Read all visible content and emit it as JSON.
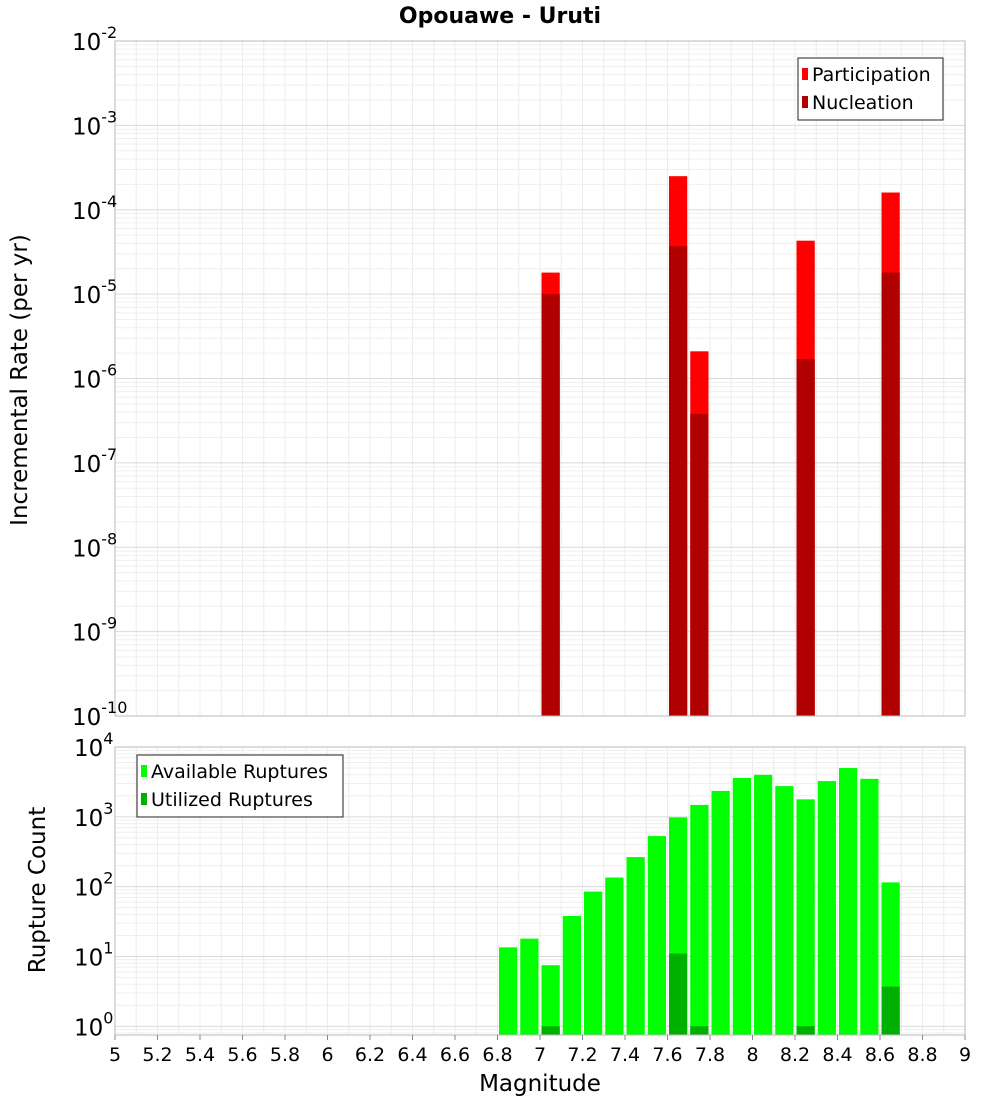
{
  "chart_data": [
    {
      "type": "bar",
      "title": "Opouawe - Uruti",
      "ylabel": "Incremental Rate (per yr)",
      "y_scale": "log",
      "ylim": [
        1e-10,
        0.01
      ],
      "xlim": [
        5,
        9
      ],
      "legend_position": "top-right",
      "grid": true,
      "y_ticks": [
        {
          "base": "10",
          "exp": "-10"
        },
        {
          "base": "10",
          "exp": "-9"
        },
        {
          "base": "10",
          "exp": "-8"
        },
        {
          "base": "10",
          "exp": "-7"
        },
        {
          "base": "10",
          "exp": "-6"
        },
        {
          "base": "10",
          "exp": "-5"
        },
        {
          "base": "10",
          "exp": "-4"
        },
        {
          "base": "10",
          "exp": "-3"
        },
        {
          "base": "10",
          "exp": "-2"
        }
      ],
      "series": [
        {
          "name": "Participation",
          "color": "#ff0000",
          "points": [
            {
              "x": 7.05,
              "y": 1.8e-05
            },
            {
              "x": 7.65,
              "y": 0.00025
            },
            {
              "x": 7.75,
              "y": 2.1e-06
            },
            {
              "x": 8.25,
              "y": 4.3e-05
            },
            {
              "x": 8.65,
              "y": 0.00016
            }
          ]
        },
        {
          "name": "Nucleation",
          "color": "#b00000",
          "points": [
            {
              "x": 7.05,
              "y": 1e-05
            },
            {
              "x": 7.65,
              "y": 3.7e-05
            },
            {
              "x": 7.75,
              "y": 3.8e-07
            },
            {
              "x": 8.25,
              "y": 1.7e-06
            },
            {
              "x": 8.65,
              "y": 1.8e-05
            }
          ]
        }
      ]
    },
    {
      "type": "bar",
      "xlabel": "Magnitude",
      "ylabel": "Rupture Count",
      "y_scale": "log",
      "ylim": [
        0.75,
        10000
      ],
      "xlim": [
        5,
        9
      ],
      "legend_position": "top-left",
      "grid": true,
      "x_ticks": [
        "5",
        "5.2",
        "5.4",
        "5.6",
        "5.8",
        "6",
        "6.2",
        "6.4",
        "6.6",
        "6.8",
        "7",
        "7.2",
        "7.4",
        "7.6",
        "7.8",
        "8",
        "8.2",
        "8.4",
        "8.6",
        "8.8",
        "9"
      ],
      "y_ticks": [
        {
          "base": "10",
          "exp": "0"
        },
        {
          "base": "10",
          "exp": "1"
        },
        {
          "base": "10",
          "exp": "2"
        },
        {
          "base": "10",
          "exp": "3"
        },
        {
          "base": "10",
          "exp": "4"
        }
      ],
      "series": [
        {
          "name": "Available Ruptures",
          "color": "#00ff00",
          "points": [
            {
              "x": 6.85,
              "y": 13.5
            },
            {
              "x": 6.95,
              "y": 18
            },
            {
              "x": 7.05,
              "y": 7.5
            },
            {
              "x": 7.15,
              "y": 38
            },
            {
              "x": 7.25,
              "y": 85
            },
            {
              "x": 7.35,
              "y": 135
            },
            {
              "x": 7.45,
              "y": 265
            },
            {
              "x": 7.55,
              "y": 530
            },
            {
              "x": 7.65,
              "y": 980
            },
            {
              "x": 7.75,
              "y": 1480
            },
            {
              "x": 7.85,
              "y": 2350
            },
            {
              "x": 7.95,
              "y": 3600
            },
            {
              "x": 8.05,
              "y": 4000
            },
            {
              "x": 8.15,
              "y": 2750
            },
            {
              "x": 8.25,
              "y": 1780
            },
            {
              "x": 8.35,
              "y": 3250
            },
            {
              "x": 8.45,
              "y": 5000
            },
            {
              "x": 8.55,
              "y": 3500
            },
            {
              "x": 8.65,
              "y": 115
            }
          ]
        },
        {
          "name": "Utilized Ruptures",
          "color": "#00b000",
          "points": [
            {
              "x": 7.05,
              "y": 1
            },
            {
              "x": 7.65,
              "y": 11
            },
            {
              "x": 7.75,
              "y": 1
            },
            {
              "x": 8.25,
              "y": 1
            },
            {
              "x": 8.65,
              "y": 3.7
            }
          ]
        }
      ]
    }
  ]
}
